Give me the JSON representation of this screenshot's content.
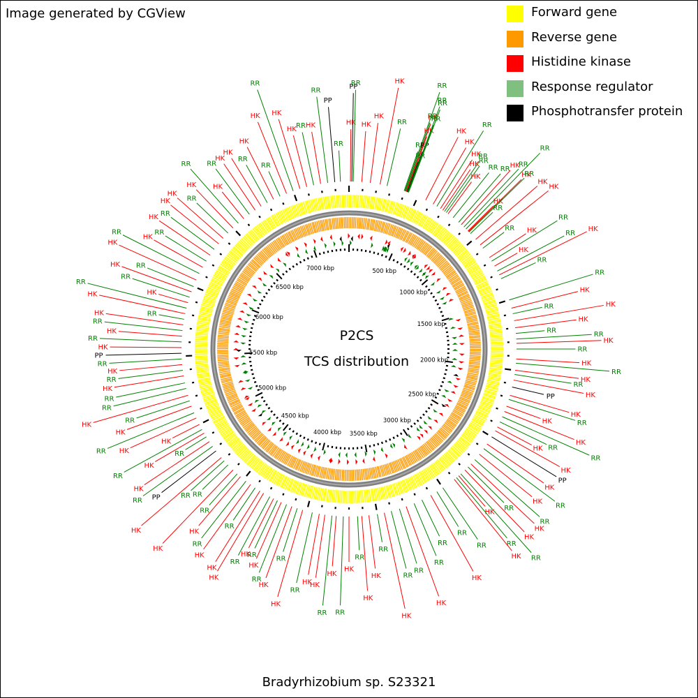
{
  "credit": "Image generated by CGView",
  "title": "P2CS",
  "subtitle": "TCS distribution",
  "organism": "Bradyrhizobium sp. S23321",
  "legend": [
    {
      "label": "Forward gene",
      "color": "#ffff00"
    },
    {
      "label": "Reverse gene",
      "color": "#ff9900"
    },
    {
      "label": "Histidine kinase",
      "color": "#ff0000"
    },
    {
      "label": "Response regulator",
      "color": "#7fbf7f"
    },
    {
      "label": "Phosphotransfer protein",
      "color": "#000000"
    }
  ],
  "colors": {
    "forward": "#ffff00",
    "reverse": "#ff9900",
    "hk": "#ff0000",
    "rr": "#008000",
    "pp": "#000000",
    "backbone": "#808080"
  },
  "chart_data": {
    "type": "circular_genome_map",
    "genome_length_kbp": 7400,
    "tick_labels": [
      "500 kbp",
      "1000 kbp",
      "1500 kbp",
      "2000 kbp",
      "2500 kbp",
      "3000 kbp",
      "3500 kbp",
      "4000 kbp",
      "4500 kbp",
      "5000 kbp",
      "5500 kbp",
      "6000 kbp",
      "6500 kbp",
      "7000 kbp"
    ],
    "features": [
      {
        "type": "HK",
        "pos_kbp": 10
      },
      {
        "type": "PP",
        "pos_kbp": 20
      },
      {
        "type": "RR",
        "pos_kbp": 30
      },
      {
        "type": "HK",
        "pos_kbp": 90
      },
      {
        "type": "HK",
        "pos_kbp": 150
      },
      {
        "type": "HK",
        "pos_kbp": 220
      },
      {
        "type": "RR",
        "pos_kbp": 270
      },
      {
        "type": "RR",
        "pos_kbp": 395
      },
      {
        "type": "RR",
        "pos_kbp": 400
      },
      {
        "type": "RR",
        "pos_kbp": 405
      },
      {
        "type": "HK",
        "pos_kbp": 410
      },
      {
        "type": "HK",
        "pos_kbp": 413
      },
      {
        "type": "RR",
        "pos_kbp": 416
      },
      {
        "type": "PP",
        "pos_kbp": 419
      },
      {
        "type": "RR",
        "pos_kbp": 422
      },
      {
        "type": "RR",
        "pos_kbp": 425
      },
      {
        "type": "RR",
        "pos_kbp": 428
      },
      {
        "type": "HK",
        "pos_kbp": 560
      },
      {
        "type": "HK",
        "pos_kbp": 620
      },
      {
        "type": "RR",
        "pos_kbp": 650
      },
      {
        "type": "HK",
        "pos_kbp": 680
      },
      {
        "type": "HK",
        "pos_kbp": 700
      },
      {
        "type": "RR",
        "pos_kbp": 715
      },
      {
        "type": "RR",
        "pos_kbp": 730
      },
      {
        "type": "HK",
        "pos_kbp": 745
      },
      {
        "type": "RR",
        "pos_kbp": 790
      },
      {
        "type": "RR",
        "pos_kbp": 840
      },
      {
        "type": "HK",
        "pos_kbp": 865
      },
      {
        "type": "RR",
        "pos_kbp": 890
      },
      {
        "type": "RR",
        "pos_kbp": 910
      },
      {
        "type": "HK",
        "pos_kbp": 930
      },
      {
        "type": "HK",
        "pos_kbp": 935
      },
      {
        "type": "RR",
        "pos_kbp": 940
      },
      {
        "type": "RR",
        "pos_kbp": 955
      },
      {
        "type": "HK",
        "pos_kbp": 1010
      },
      {
        "type": "HK",
        "pos_kbp": 1060
      },
      {
        "type": "RR",
        "pos_kbp": 1090
      },
      {
        "type": "HK",
        "pos_kbp": 1170
      },
      {
        "type": "RR",
        "pos_kbp": 1200
      },
      {
        "type": "HK",
        "pos_kbp": 1240
      },
      {
        "type": "RR",
        "pos_kbp": 1280
      },
      {
        "type": "HK",
        "pos_kbp": 1310
      },
      {
        "type": "RR",
        "pos_kbp": 1340
      },
      {
        "type": "RR",
        "pos_kbp": 1500
      },
      {
        "type": "HK",
        "pos_kbp": 1560
      },
      {
        "type": "RR",
        "pos_kbp": 1600
      },
      {
        "type": "HK",
        "pos_kbp": 1650
      },
      {
        "type": "HK",
        "pos_kbp": 1700
      },
      {
        "type": "RR",
        "pos_kbp": 1740
      },
      {
        "type": "RR",
        "pos_kbp": 1780
      },
      {
        "type": "HK",
        "pos_kbp": 1810
      },
      {
        "type": "RR",
        "pos_kbp": 1850
      },
      {
        "type": "HK",
        "pos_kbp": 1920
      },
      {
        "type": "RR",
        "pos_kbp": 1950
      },
      {
        "type": "HK",
        "pos_kbp": 2000
      },
      {
        "type": "RR",
        "pos_kbp": 2030
      },
      {
        "type": "HK",
        "pos_kbp": 2070
      },
      {
        "type": "PP",
        "pos_kbp": 2120
      },
      {
        "type": "HK",
        "pos_kbp": 2180
      },
      {
        "type": "RR",
        "pos_kbp": 2210
      },
      {
        "type": "HK",
        "pos_kbp": 2260
      },
      {
        "type": "HK",
        "pos_kbp": 2300
      },
      {
        "type": "RR",
        "pos_kbp": 2340
      },
      {
        "type": "RR",
        "pos_kbp": 2380
      },
      {
        "type": "HK",
        "pos_kbp": 2420
      },
      {
        "type": "HK",
        "pos_kbp": 2450
      },
      {
        "type": "PP",
        "pos_kbp": 2500
      },
      {
        "type": "HK",
        "pos_kbp": 2560
      },
      {
        "type": "RR",
        "pos_kbp": 2600
      },
      {
        "type": "HK",
        "pos_kbp": 2650
      },
      {
        "type": "RR",
        "pos_kbp": 2700
      },
      {
        "type": "HK",
        "pos_kbp": 2740
      },
      {
        "type": "RR",
        "pos_kbp": 2770
      },
      {
        "type": "HK",
        "pos_kbp": 2800
      },
      {
        "type": "RR",
        "pos_kbp": 2840
      },
      {
        "type": "HK",
        "pos_kbp": 2860
      },
      {
        "type": "RR",
        "pos_kbp": 2880
      },
      {
        "type": "HK",
        "pos_kbp": 2900
      },
      {
        "type": "RR",
        "pos_kbp": 3000
      },
      {
        "type": "RR",
        "pos_kbp": 3050
      },
      {
        "type": "HK",
        "pos_kbp": 3100
      },
      {
        "type": "RR",
        "pos_kbp": 3170
      },
      {
        "type": "RR",
        "pos_kbp": 3230
      },
      {
        "type": "HK",
        "pos_kbp": 3290
      },
      {
        "type": "RR",
        "pos_kbp": 3340
      },
      {
        "type": "RR",
        "pos_kbp": 3400
      },
      {
        "type": "HK",
        "pos_kbp": 3450
      },
      {
        "type": "RR",
        "pos_kbp": 3500
      },
      {
        "type": "HK",
        "pos_kbp": 3560
      },
      {
        "type": "HK",
        "pos_kbp": 3610
      },
      {
        "type": "RR",
        "pos_kbp": 3640
      },
      {
        "type": "HK",
        "pos_kbp": 3700
      },
      {
        "type": "RR",
        "pos_kbp": 3740
      },
      {
        "type": "HK",
        "pos_kbp": 3790
      },
      {
        "type": "RR",
        "pos_kbp": 3820
      },
      {
        "type": "HK",
        "pos_kbp": 3870
      },
      {
        "type": "HK",
        "pos_kbp": 3910
      },
      {
        "type": "RR",
        "pos_kbp": 3960
      },
      {
        "type": "HK",
        "pos_kbp": 4030
      },
      {
        "type": "RR",
        "pos_kbp": 4070
      },
      {
        "type": "HK",
        "pos_kbp": 4110
      },
      {
        "type": "RR",
        "pos_kbp": 4150
      },
      {
        "type": "HK",
        "pos_kbp": 4190
      },
      {
        "type": "RR",
        "pos_kbp": 4220
      },
      {
        "type": "HK",
        "pos_kbp": 4250
      },
      {
        "type": "RR",
        "pos_kbp": 4280
      },
      {
        "type": "HK",
        "pos_kbp": 4330
      },
      {
        "type": "HK",
        "pos_kbp": 4360
      },
      {
        "type": "RR",
        "pos_kbp": 4400
      },
      {
        "type": "HK",
        "pos_kbp": 4440
      },
      {
        "type": "RR",
        "pos_kbp": 4480
      },
      {
        "type": "HK",
        "pos_kbp": 4530
      },
      {
        "type": "RR",
        "pos_kbp": 4560
      },
      {
        "type": "HK",
        "pos_kbp": 4600
      },
      {
        "type": "RR",
        "pos_kbp": 4650
      },
      {
        "type": "RR",
        "pos_kbp": 4690
      },
      {
        "type": "HK",
        "pos_kbp": 4720
      },
      {
        "type": "PP",
        "pos_kbp": 4780
      },
      {
        "type": "RR",
        "pos_kbp": 4820
      },
      {
        "type": "HK",
        "pos_kbp": 4860
      },
      {
        "type": "RR",
        "pos_kbp": 4900
      },
      {
        "type": "HK",
        "pos_kbp": 4930
      },
      {
        "type": "RR",
        "pos_kbp": 4960
      },
      {
        "type": "HK",
        "pos_kbp": 5000
      },
      {
        "type": "HK",
        "pos_kbp": 5050
      },
      {
        "type": "RR",
        "pos_kbp": 5090
      },
      {
        "type": "HK",
        "pos_kbp": 5140
      },
      {
        "type": "RR",
        "pos_kbp": 5180
      },
      {
        "type": "HK",
        "pos_kbp": 5220
      },
      {
        "type": "RR",
        "pos_kbp": 5270
      },
      {
        "type": "RR",
        "pos_kbp": 5310
      },
      {
        "type": "HK",
        "pos_kbp": 5360
      },
      {
        "type": "RR",
        "pos_kbp": 5400
      },
      {
        "type": "HK",
        "pos_kbp": 5440
      },
      {
        "type": "RR",
        "pos_kbp": 5480
      },
      {
        "type": "PP",
        "pos_kbp": 5520
      },
      {
        "type": "HK",
        "pos_kbp": 5560
      },
      {
        "type": "RR",
        "pos_kbp": 5600
      },
      {
        "type": "HK",
        "pos_kbp": 5640
      },
      {
        "type": "RR",
        "pos_kbp": 5680
      },
      {
        "type": "HK",
        "pos_kbp": 5720
      },
      {
        "type": "RR",
        "pos_kbp": 5760
      },
      {
        "type": "HK",
        "pos_kbp": 5800
      },
      {
        "type": "RR",
        "pos_kbp": 5840
      },
      {
        "type": "HK",
        "pos_kbp": 5880
      },
      {
        "type": "RR",
        "pos_kbp": 5920
      },
      {
        "type": "HK",
        "pos_kbp": 5960
      },
      {
        "type": "RR",
        "pos_kbp": 6000
      },
      {
        "type": "HK",
        "pos_kbp": 6050
      },
      {
        "type": "RR",
        "pos_kbp": 6100
      },
      {
        "type": "HK",
        "pos_kbp": 6150
      },
      {
        "type": "RR",
        "pos_kbp": 6200
      },
      {
        "type": "HK",
        "pos_kbp": 6250
      },
      {
        "type": "RR",
        "pos_kbp": 6300
      },
      {
        "type": "HK",
        "pos_kbp": 6350
      },
      {
        "type": "HK",
        "pos_kbp": 6400
      },
      {
        "type": "RR",
        "pos_kbp": 6450
      },
      {
        "type": "HK",
        "pos_kbp": 6500
      },
      {
        "type": "RR",
        "pos_kbp": 6550
      },
      {
        "type": "HK",
        "pos_kbp": 6600
      },
      {
        "type": "RR",
        "pos_kbp": 6650
      },
      {
        "type": "HK",
        "pos_kbp": 6700
      },
      {
        "type": "HK",
        "pos_kbp": 6750
      },
      {
        "type": "RR",
        "pos_kbp": 6800
      },
      {
        "type": "HK",
        "pos_kbp": 6850
      },
      {
        "type": "RR",
        "pos_kbp": 6900
      },
      {
        "type": "HK",
        "pos_kbp": 6950
      },
      {
        "type": "RR",
        "pos_kbp": 7000
      },
      {
        "type": "HK",
        "pos_kbp": 7050
      },
      {
        "type": "HK",
        "pos_kbp": 7100
      },
      {
        "type": "RR",
        "pos_kbp": 7150
      },
      {
        "type": "HK",
        "pos_kbp": 7200
      },
      {
        "type": "RR",
        "pos_kbp": 7250
      },
      {
        "type": "PP",
        "pos_kbp": 7300
      },
      {
        "type": "RR",
        "pos_kbp": 7340
      }
    ]
  }
}
